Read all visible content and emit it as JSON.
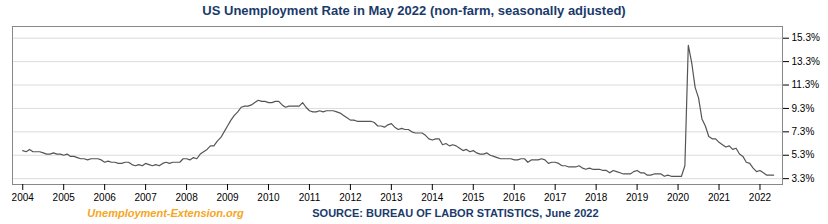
{
  "chart_data": {
    "type": "line",
    "title": "US Unemployment Rate in May 2022 (non-farm, seasonally adjusted)",
    "color": "#555555",
    "grid": true,
    "xlim": [
      2003.75,
      2022.55
    ],
    "xticks": [
      2004,
      2005,
      2006,
      2007,
      2008,
      2009,
      2010,
      2011,
      2012,
      2013,
      2014,
      2015,
      2016,
      2017,
      2018,
      2019,
      2020,
      2021,
      2022
    ],
    "ylim": [
      2.8,
      16.3
    ],
    "yticks": [
      {
        "value": 3.3,
        "label": "3.3%"
      },
      {
        "value": 5.3,
        "label": "5.3%"
      },
      {
        "value": 7.3,
        "label": "7.3%"
      },
      {
        "value": 9.3,
        "label": "9.3%"
      },
      {
        "value": 11.3,
        "label": "11.3%"
      },
      {
        "value": 13.3,
        "label": "13.3%"
      },
      {
        "value": 15.3,
        "label": "15.3%"
      }
    ],
    "annotations": [
      {
        "text": "Unemployment-Extension.org",
        "color": "#f5a623"
      },
      {
        "text": "SOURCE: BUREAU OF LABOR STATISTICS, June 2022",
        "color": "#1a3a6b"
      }
    ],
    "x": [
      2004,
      2004.0833333333,
      2004.1666666667,
      2004.25,
      2004.3333333333,
      2004.4166666667,
      2004.5,
      2004.5833333333,
      2004.6666666667,
      2004.75,
      2004.8333333333,
      2004.9166666667,
      2005,
      2005.0833333333,
      2005.1666666667,
      2005.25,
      2005.3333333333,
      2005.4166666667,
      2005.5,
      2005.5833333333,
      2005.6666666667,
      2005.75,
      2005.8333333333,
      2005.9166666667,
      2006,
      2006.0833333333,
      2006.1666666667,
      2006.25,
      2006.3333333333,
      2006.4166666667,
      2006.5,
      2006.5833333333,
      2006.6666666667,
      2006.75,
      2006.8333333333,
      2006.9166666667,
      2007,
      2007.0833333333,
      2007.1666666667,
      2007.25,
      2007.3333333333,
      2007.4166666667,
      2007.5,
      2007.5833333333,
      2007.6666666667,
      2007.75,
      2007.8333333333,
      2007.9166666667,
      2008,
      2008.0833333333,
      2008.1666666667,
      2008.25,
      2008.3333333333,
      2008.4166666667,
      2008.5,
      2008.5833333333,
      2008.6666666667,
      2008.75,
      2008.8333333333,
      2008.9166666667,
      2009,
      2009.0833333333,
      2009.1666666667,
      2009.25,
      2009.3333333333,
      2009.4166666667,
      2009.5,
      2009.5833333333,
      2009.6666666667,
      2009.75,
      2009.8333333333,
      2009.9166666667,
      2010,
      2010.0833333333,
      2010.1666666667,
      2010.25,
      2010.3333333333,
      2010.4166666667,
      2010.5,
      2010.5833333333,
      2010.6666666667,
      2010.75,
      2010.8333333333,
      2010.9166666667,
      2011,
      2011.0833333333,
      2011.1666666667,
      2011.25,
      2011.3333333333,
      2011.4166666667,
      2011.5,
      2011.5833333333,
      2011.6666666667,
      2011.75,
      2011.8333333333,
      2011.9166666667,
      2012,
      2012.0833333333,
      2012.1666666667,
      2012.25,
      2012.3333333333,
      2012.4166666667,
      2012.5,
      2012.5833333333,
      2012.6666666667,
      2012.75,
      2012.8333333333,
      2012.9166666667,
      2013,
      2013.0833333333,
      2013.1666666667,
      2013.25,
      2013.3333333333,
      2013.4166666667,
      2013.5,
      2013.5833333333,
      2013.6666666667,
      2013.75,
      2013.8333333333,
      2013.9166666667,
      2014,
      2014.0833333333,
      2014.1666666667,
      2014.25,
      2014.3333333333,
      2014.4166666667,
      2014.5,
      2014.5833333333,
      2014.6666666667,
      2014.75,
      2014.8333333333,
      2014.9166666667,
      2015,
      2015.0833333333,
      2015.1666666667,
      2015.25,
      2015.3333333333,
      2015.4166666667,
      2015.5,
      2015.5833333333,
      2015.6666666667,
      2015.75,
      2015.8333333333,
      2015.9166666667,
      2016,
      2016.0833333333,
      2016.1666666667,
      2016.25,
      2016.3333333333,
      2016.4166666667,
      2016.5,
      2016.5833333333,
      2016.6666666667,
      2016.75,
      2016.8333333333,
      2016.9166666667,
      2017,
      2017.0833333333,
      2017.1666666667,
      2017.25,
      2017.3333333333,
      2017.4166666667,
      2017.5,
      2017.5833333333,
      2017.6666666667,
      2017.75,
      2017.8333333333,
      2017.9166666667,
      2018,
      2018.0833333333,
      2018.1666666667,
      2018.25,
      2018.3333333333,
      2018.4166666667,
      2018.5,
      2018.5833333333,
      2018.6666666667,
      2018.75,
      2018.8333333333,
      2018.9166666667,
      2019,
      2019.0833333333,
      2019.1666666667,
      2019.25,
      2019.3333333333,
      2019.4166666667,
      2019.5,
      2019.5833333333,
      2019.6666666667,
      2019.75,
      2019.8333333333,
      2019.9166666667,
      2020,
      2020.0833333333,
      2020.1666666667,
      2020.25,
      2020.3333333333,
      2020.4166666667,
      2020.5,
      2020.5833333333,
      2020.6666666667,
      2020.75,
      2020.8333333333,
      2020.9166666667,
      2021,
      2021.0833333333,
      2021.1666666667,
      2021.25,
      2021.3333333333,
      2021.4166666667,
      2021.5,
      2021.5833333333,
      2021.6666666667,
      2021.75,
      2021.8333333333,
      2021.9166666667,
      2022,
      2022.0833333333,
      2022.1666666667,
      2022.25,
      2022.3333333333
    ],
    "values": [
      5.7,
      5.6,
      5.8,
      5.6,
      5.6,
      5.6,
      5.5,
      5.4,
      5.4,
      5.5,
      5.4,
      5.4,
      5.3,
      5.4,
      5.2,
      5.2,
      5.1,
      5.0,
      5.0,
      4.9,
      5.0,
      5.0,
      5.0,
      4.9,
      4.7,
      4.8,
      4.7,
      4.7,
      4.6,
      4.6,
      4.7,
      4.7,
      4.5,
      4.4,
      4.5,
      4.4,
      4.6,
      4.5,
      4.4,
      4.5,
      4.4,
      4.6,
      4.7,
      4.6,
      4.7,
      4.7,
      4.7,
      5.0,
      5.0,
      4.9,
      5.1,
      5.0,
      5.4,
      5.6,
      5.8,
      6.1,
      6.1,
      6.5,
      6.8,
      7.3,
      7.8,
      8.3,
      8.7,
      9.0,
      9.4,
      9.5,
      9.5,
      9.6,
      9.8,
      10.0,
      9.9,
      9.9,
      9.8,
      9.8,
      9.9,
      9.9,
      9.6,
      9.4,
      9.5,
      9.5,
      9.5,
      9.5,
      9.8,
      9.4,
      9.1,
      9.0,
      9.0,
      9.1,
      9.0,
      9.1,
      9.1,
      9.1,
      9.0,
      8.9,
      8.7,
      8.5,
      8.3,
      8.3,
      8.2,
      8.2,
      8.2,
      8.2,
      8.2,
      8.1,
      7.8,
      7.8,
      7.7,
      7.9,
      8.0,
      7.7,
      7.5,
      7.6,
      7.5,
      7.5,
      7.3,
      7.2,
      7.2,
      7.2,
      7.0,
      6.7,
      6.6,
      6.7,
      6.7,
      6.2,
      6.3,
      6.1,
      6.2,
      6.1,
      5.9,
      5.7,
      5.8,
      5.6,
      5.7,
      5.5,
      5.4,
      5.4,
      5.5,
      5.3,
      5.2,
      5.1,
      5.0,
      5.0,
      5.0,
      5.0,
      4.9,
      4.9,
      5.0,
      5.0,
      4.7,
      4.9,
      4.9,
      4.9,
      5.0,
      4.9,
      4.6,
      4.7,
      4.7,
      4.6,
      4.4,
      4.4,
      4.3,
      4.3,
      4.3,
      4.4,
      4.2,
      4.1,
      4.2,
      4.1,
      4.1,
      4.1,
      4.0,
      4.0,
      3.8,
      4.0,
      3.9,
      3.8,
      3.7,
      3.7,
      3.7,
      3.9,
      4.0,
      3.8,
      3.8,
      3.6,
      3.6,
      3.7,
      3.7,
      3.7,
      3.5,
      3.6,
      3.5,
      3.5,
      3.5,
      3.5,
      4.4,
      14.7,
      13.2,
      11.1,
      10.2,
      8.4,
      7.8,
      6.9,
      6.7,
      6.7,
      6.4,
      6.2,
      6.0,
      6.1,
      5.8,
      5.9,
      5.4,
      5.2,
      4.7,
      4.6,
      4.2,
      3.9,
      4.0,
      3.8,
      3.6,
      3.6,
      3.6
    ]
  }
}
